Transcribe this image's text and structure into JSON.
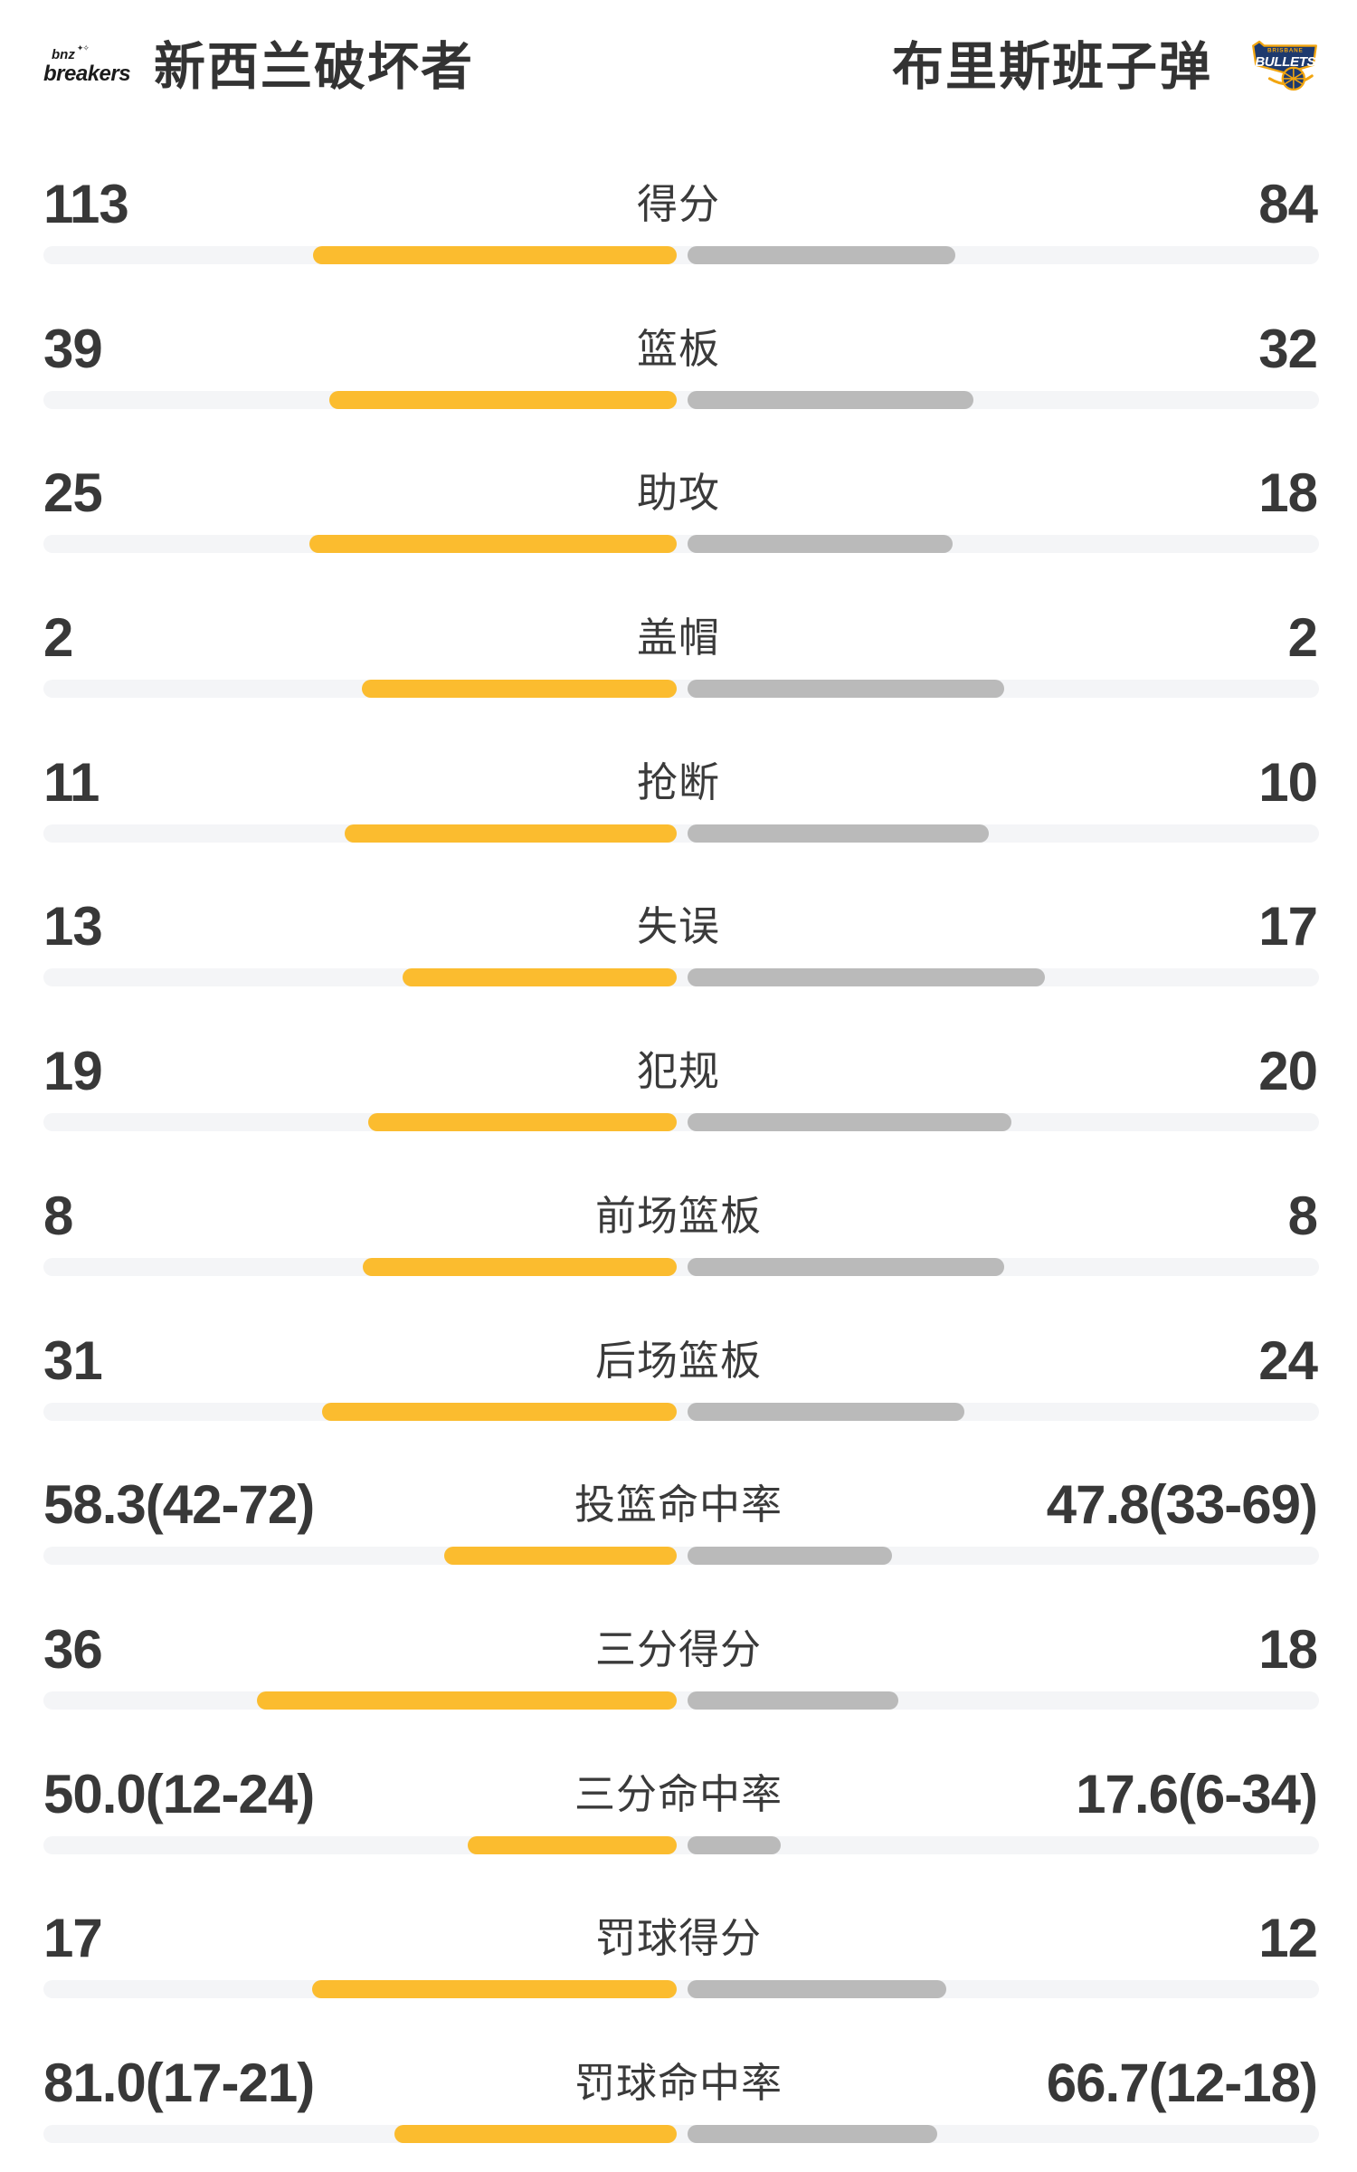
{
  "header": {
    "home_team": {
      "name": "新西兰破坏者",
      "logo": {
        "line1": "bnz",
        "sparkles": "✦✧",
        "line2": "breakers"
      }
    },
    "away_team": {
      "name": "布里斯班子弹",
      "logo": {
        "top_text": "BRISBANE",
        "main_text": "BULLETS"
      }
    }
  },
  "colors": {
    "home_bar": "#fbbc2f",
    "away_bar": "#bababa",
    "track": "#f4f5f7",
    "value_text": "#383838",
    "crest_navy": "#1e3a6e",
    "crest_gold": "#f2a50f"
  },
  "stats": [
    {
      "label": "得分",
      "home": "113",
      "away": "84",
      "home_bar_pct": 28.5,
      "away_bar_pct": 21.0
    },
    {
      "label": "篮板",
      "home": "39",
      "away": "32",
      "home_bar_pct": 27.2,
      "away_bar_pct": 22.4
    },
    {
      "label": "助攻",
      "home": "25",
      "away": "18",
      "home_bar_pct": 28.8,
      "away_bar_pct": 20.8
    },
    {
      "label": "盖帽",
      "home": "2",
      "away": "2",
      "home_bar_pct": 24.7,
      "away_bar_pct": 24.8
    },
    {
      "label": "抢断",
      "home": "11",
      "away": "10",
      "home_bar_pct": 26.0,
      "away_bar_pct": 23.6
    },
    {
      "label": "失误",
      "home": "13",
      "away": "17",
      "home_bar_pct": 21.5,
      "away_bar_pct": 28.0
    },
    {
      "label": "犯规",
      "home": "19",
      "away": "20",
      "home_bar_pct": 24.2,
      "away_bar_pct": 25.4
    },
    {
      "label": "前场篮板",
      "home": "8",
      "away": "8",
      "home_bar_pct": 24.6,
      "away_bar_pct": 24.8
    },
    {
      "label": "后场篮板",
      "home": "31",
      "away": "24",
      "home_bar_pct": 27.8,
      "away_bar_pct": 21.7
    },
    {
      "label": "投篮命中率",
      "home": "58.3(42-72)",
      "away": "47.8(33-69)",
      "home_bar_pct": 18.2,
      "away_bar_pct": 16.0
    },
    {
      "label": "三分得分",
      "home": "36",
      "away": "18",
      "home_bar_pct": 32.9,
      "away_bar_pct": 16.5
    },
    {
      "label": "三分命中率",
      "home": "50.0(12-24)",
      "away": "17.6(6-34)",
      "home_bar_pct": 16.4,
      "away_bar_pct": 7.3
    },
    {
      "label": "罚球得分",
      "home": "17",
      "away": "12",
      "home_bar_pct": 28.6,
      "away_bar_pct": 20.3
    },
    {
      "label": "罚球命中率",
      "home": "81.0(17-21)",
      "away": "66.7(12-18)",
      "home_bar_pct": 22.1,
      "away_bar_pct": 19.6
    }
  ],
  "chart_data": {
    "type": "bar",
    "title": "新西兰破坏者 vs 布里斯班子弹",
    "categories": [
      "得分",
      "篮板",
      "助攻",
      "盖帽",
      "抢断",
      "失误",
      "犯规",
      "前场篮板",
      "后场篮板",
      "投篮命中率",
      "三分得分",
      "三分命中率",
      "罚球得分",
      "罚球命中率"
    ],
    "series": [
      {
        "name": "新西兰破坏者",
        "values": [
          113,
          39,
          25,
          2,
          11,
          13,
          19,
          8,
          31,
          58.3,
          36,
          50.0,
          17,
          81.0
        ]
      },
      {
        "name": "布里斯班子弹",
        "values": [
          84,
          32,
          18,
          2,
          10,
          17,
          20,
          8,
          24,
          47.8,
          18,
          17.6,
          12,
          66.7
        ]
      }
    ],
    "annotations": {
      "shooting_detail_home": [
        "42-72",
        "12-24",
        "17-21"
      ],
      "shooting_detail_away": [
        "33-69",
        "6-34",
        "12-18"
      ]
    },
    "legend_position": "top",
    "grid": false,
    "orientation": "horizontal-tug-of-war"
  }
}
